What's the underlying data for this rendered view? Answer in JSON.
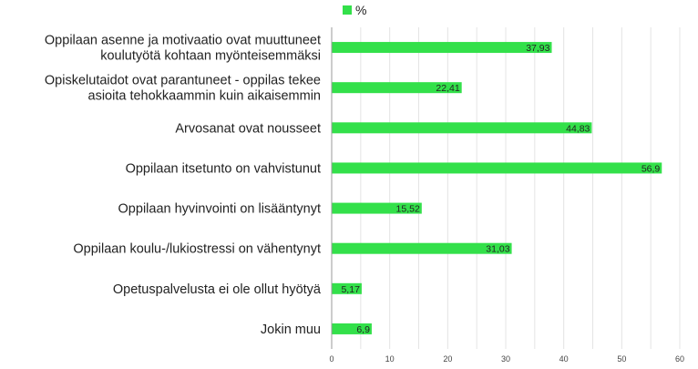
{
  "chart_data": {
    "type": "bar",
    "orientation": "horizontal",
    "categories": [
      "Oppilaan asenne ja motivaatio ovat muuttuneet koulutyötä kohtaan myönteisemmäksi",
      "Opiskelutaidot ovat parantuneet - oppilas tekee asioita tehokkaammin kuin aikaisemmin",
      "Arvosanat ovat nousseet",
      "Oppilaan itsetunto on vahvistunut",
      "Oppilaan hyvinvointi on lisääntynyt",
      "Oppilaan koulu-/lukiostressi on vähentynyt",
      "Opetuspalvelusta ei ole ollut hyötyä",
      "Jokin muu"
    ],
    "category_lines": [
      [
        "Oppilaan asenne ja motivaatio ovat muuttuneet",
        "koulutyötä kohtaan myönteisemmäksi"
      ],
      [
        "Opiskelutaidot ovat parantuneet - oppilas tekee",
        "asioita tehokkaammin kuin aikaisemmin"
      ],
      [
        "Arvosanat ovat nousseet"
      ],
      [
        "Oppilaan itsetunto on vahvistunut"
      ],
      [
        "Oppilaan hyvinvointi on lisääntynyt"
      ],
      [
        "Oppilaan koulu-/lukiostressi on vähentynyt"
      ],
      [
        "Opetuspalvelusta ei ole ollut hyötyä"
      ],
      [
        "Jokin muu"
      ]
    ],
    "series": [
      {
        "name": "%",
        "values": [
          37.93,
          22.41,
          44.83,
          56.9,
          15.52,
          31.03,
          5.17,
          6.9
        ],
        "value_labels": [
          "37,93",
          "22,41",
          "44,83",
          "56,9",
          "15,52",
          "31,03",
          "5,17",
          "6,9"
        ],
        "color": "#33e04a"
      }
    ],
    "xlim": [
      0,
      60
    ],
    "xticks": [
      0,
      10,
      20,
      30,
      40,
      50,
      60
    ],
    "grid": true,
    "legend": "top-center"
  }
}
